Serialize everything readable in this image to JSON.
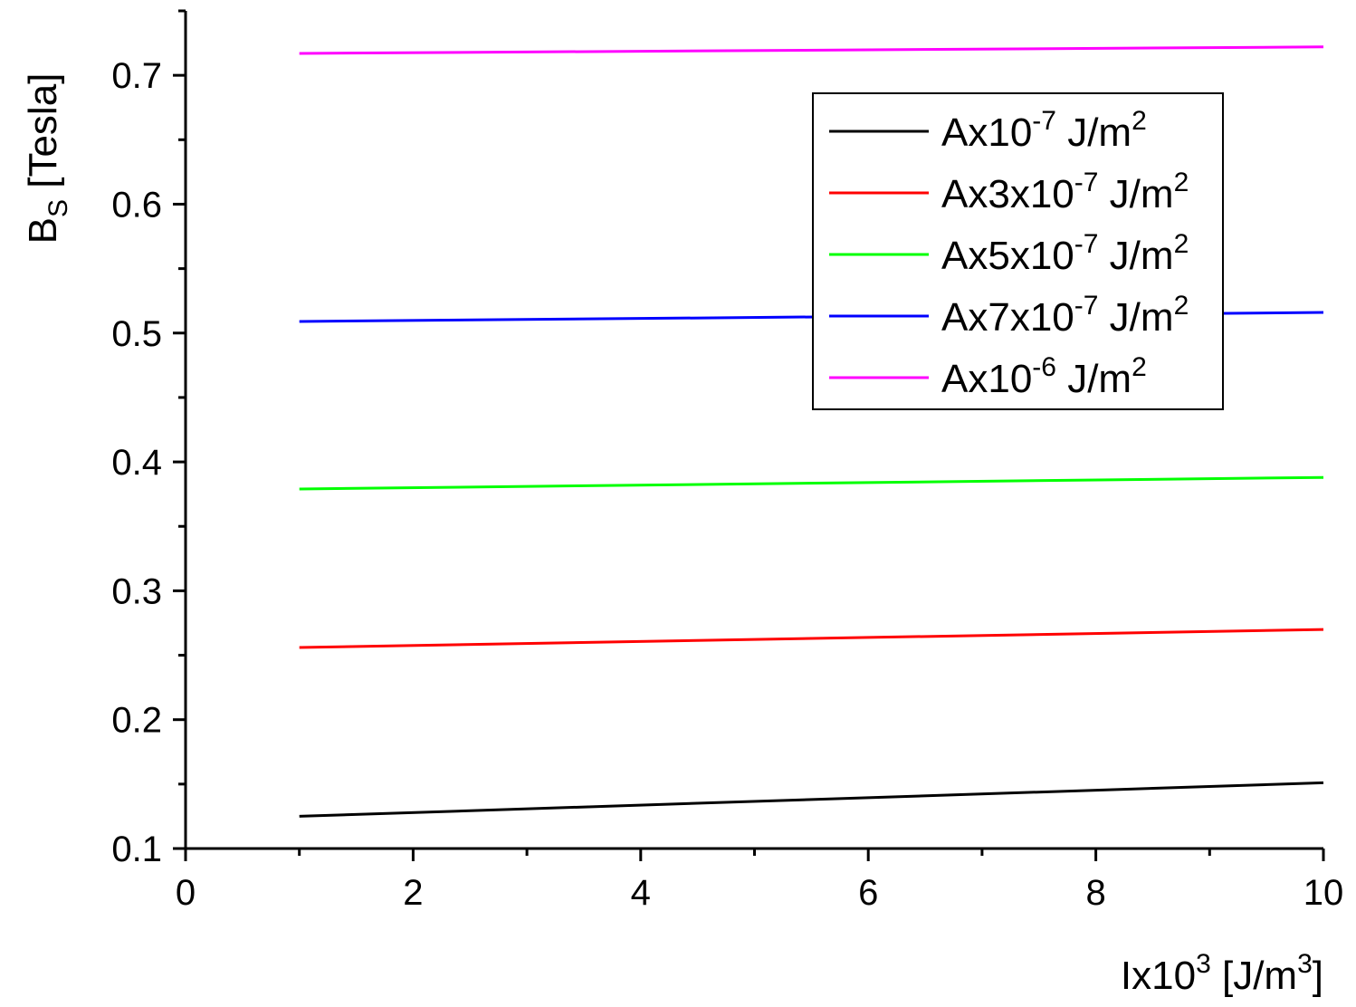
{
  "chart_data": {
    "type": "line",
    "title": "",
    "xlabel": {
      "main": "Ix10",
      "sup": "3",
      "rest": " [J/m",
      "sup2": "3",
      "end": "]"
    },
    "ylabel": {
      "main": "B",
      "sub": "S",
      "rest": " [Tesla]"
    },
    "xlim": [
      0,
      10
    ],
    "ylim": [
      0.1,
      0.75
    ],
    "x_ticks": [
      0,
      2,
      4,
      6,
      8,
      10
    ],
    "x_tick_labels": [
      "0",
      "2",
      "4",
      "6",
      "8",
      "10"
    ],
    "y_ticks": [
      0.1,
      0.2,
      0.3,
      0.4,
      0.5,
      0.6,
      0.7
    ],
    "y_tick_labels": [
      "0.1",
      "0.2",
      "0.3",
      "0.4",
      "0.5",
      "0.6",
      "0.7"
    ],
    "grid": false,
    "legend_position": "top-right",
    "series": [
      {
        "name": "Ax10-7 J/m2",
        "legend": {
          "pre": "Ax10",
          "sup": "-7",
          "mid": " J/m",
          "sup2": "2"
        },
        "color": "#000000",
        "x": [
          1,
          10
        ],
        "y": [
          0.125,
          0.151
        ]
      },
      {
        "name": "Ax3x10-7 J/m2",
        "legend": {
          "pre": "Ax3x10",
          "sup": "-7",
          "mid": " J/m",
          "sup2": "2"
        },
        "color": "#ff0000",
        "x": [
          1,
          10
        ],
        "y": [
          0.256,
          0.27
        ]
      },
      {
        "name": "Ax5x10-7 J/m2",
        "legend": {
          "pre": "Ax5x10",
          "sup": "-7",
          "mid": " J/m",
          "sup2": "2"
        },
        "color": "#00ff00",
        "x": [
          1,
          10
        ],
        "y": [
          0.379,
          0.388
        ]
      },
      {
        "name": "Ax7x10-7 J/m2",
        "legend": {
          "pre": "Ax7x10",
          "sup": "-7",
          "mid": " J/m",
          "sup2": "2"
        },
        "color": "#0000ff",
        "x": [
          1,
          10
        ],
        "y": [
          0.509,
          0.516
        ]
      },
      {
        "name": "Ax10-6 J/m2",
        "legend": {
          "pre": "Ax10",
          "sup": "-6",
          "mid": " J/m",
          "sup2": "2"
        },
        "color": "#ff00ff",
        "x": [
          1,
          10
        ],
        "y": [
          0.717,
          0.722
        ]
      }
    ]
  }
}
